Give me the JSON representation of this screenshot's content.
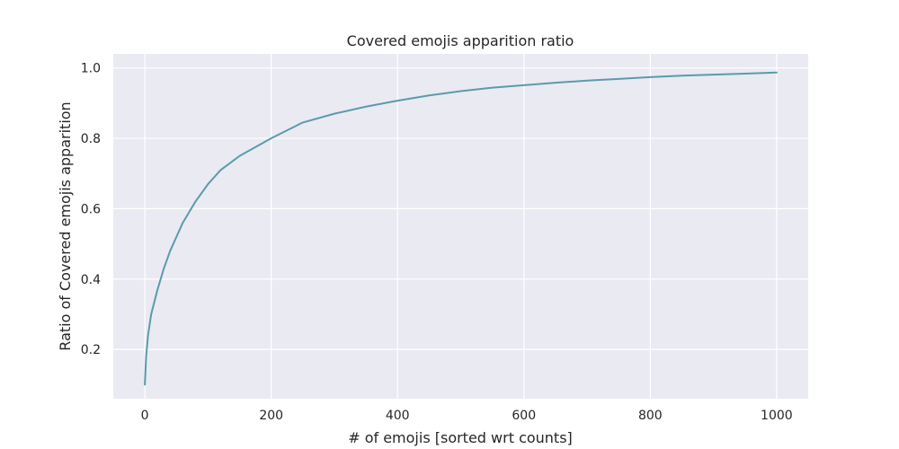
{
  "chart_data": {
    "type": "line",
    "title": "Covered emojis apparition ratio",
    "xlabel": "# of emojis [sorted wrt counts]",
    "ylabel": "Ratio of Covered emojis apparition",
    "xlim": [
      -50,
      1050
    ],
    "ylim": [
      0.06,
      1.04
    ],
    "x_ticks": [
      0,
      200,
      400,
      600,
      800,
      1000
    ],
    "y_ticks": [
      0.2,
      0.4,
      0.6,
      0.8,
      1.0
    ],
    "x_tick_labels": [
      "0",
      "200",
      "400",
      "600",
      "800",
      "1000"
    ],
    "y_tick_labels": [
      "0.2",
      "0.4",
      "0.6",
      "0.8",
      "1.0"
    ],
    "grid": true,
    "colors": {
      "plot_background": "#eaeaf2",
      "grid": "#ffffff",
      "line": "#5b9bab",
      "text": "#262626"
    },
    "series": [
      {
        "x": [
          0,
          2,
          5,
          10,
          20,
          30,
          40,
          50,
          60,
          80,
          100,
          120,
          150,
          200,
          250,
          300,
          350,
          400,
          450,
          500,
          550,
          600,
          650,
          700,
          750,
          800,
          850,
          900,
          950,
          1000
        ],
        "y": [
          0.1,
          0.18,
          0.24,
          0.3,
          0.37,
          0.43,
          0.48,
          0.52,
          0.56,
          0.62,
          0.67,
          0.71,
          0.75,
          0.8,
          0.845,
          0.87,
          0.89,
          0.907,
          0.922,
          0.934,
          0.944,
          0.951,
          0.958,
          0.964,
          0.969,
          0.974,
          0.978,
          0.981,
          0.984,
          0.987
        ]
      }
    ]
  }
}
